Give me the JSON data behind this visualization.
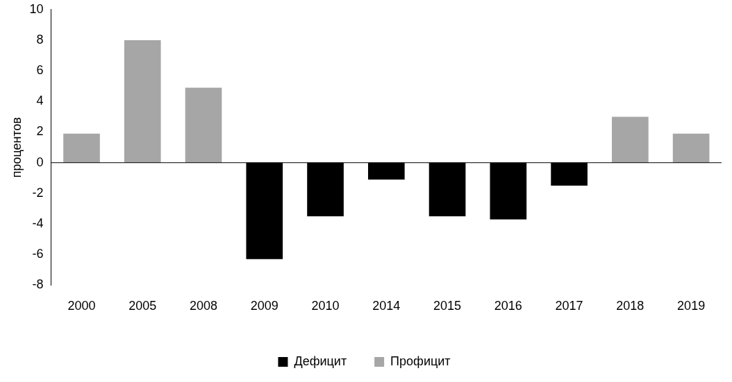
{
  "chart_data": {
    "type": "bar",
    "ylabel": "процентов",
    "categories": [
      "2000",
      "2005",
      "2008",
      "2009",
      "2010",
      "2014",
      "2015",
      "2016",
      "2017",
      "2018",
      "2019"
    ],
    "series": [
      {
        "name": "Дефицит",
        "color": "#000000",
        "values": [
          null,
          null,
          null,
          -6.3,
          -3.5,
          -1.1,
          -3.5,
          -3.7,
          -1.5,
          null,
          null
        ]
      },
      {
        "name": "Профицит",
        "color": "#a6a6a6",
        "values": [
          1.9,
          8,
          4.9,
          null,
          null,
          null,
          null,
          null,
          null,
          3,
          1.9
        ]
      }
    ],
    "stacked": true,
    "ylim": [
      -8,
      10
    ],
    "yticks": [
      -8,
      -6,
      -4,
      -2,
      0,
      2,
      4,
      6,
      8,
      10
    ],
    "grid": false,
    "ref_lines": [
      {
        "axis": "y",
        "value": 0,
        "color": "#000000"
      }
    ],
    "legend": "bottom"
  }
}
